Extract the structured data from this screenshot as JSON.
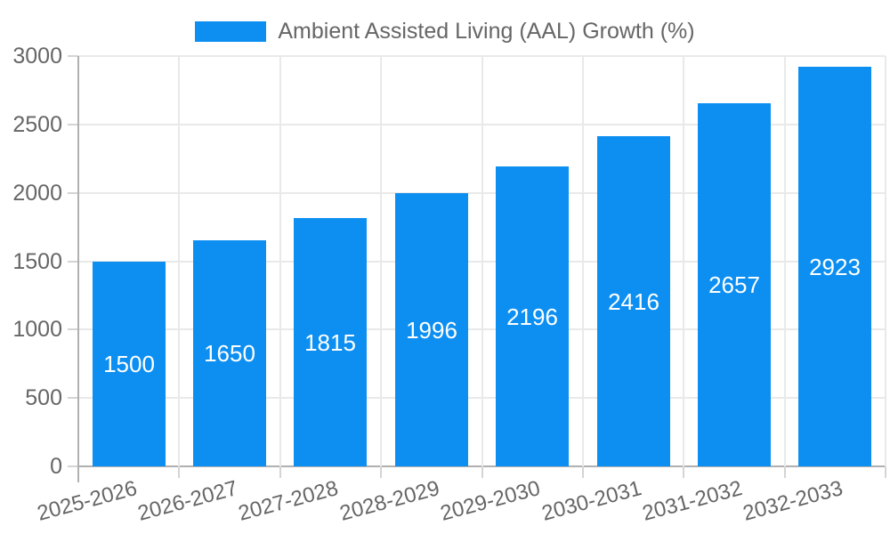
{
  "legend": {
    "label": "Ambient Assisted Living (AAL) Growth (%)"
  },
  "colors": {
    "bar": "#0d8ff2",
    "grid": "#e9e9e9",
    "axis": "#b0b0b0",
    "tick": "#d4d4d4",
    "text": "#666666",
    "value_label": "#ffffff",
    "background": "#ffffff"
  },
  "chart_data": {
    "type": "bar",
    "title": "",
    "series_name": "Ambient Assisted Living (AAL) Growth (%)",
    "categories": [
      "2025-2026",
      "2026-2027",
      "2027-2028",
      "2028-2029",
      "2029-2030",
      "2030-2031",
      "2031-2032",
      "2032-2033"
    ],
    "values": [
      1500,
      1650,
      1815,
      1996,
      2196,
      2416,
      2657,
      2923
    ],
    "xlabel": "",
    "ylabel": "",
    "ylim": [
      0,
      3000
    ],
    "yticks": [
      0,
      500,
      1000,
      1500,
      2000,
      2500,
      3000
    ],
    "grid": true,
    "legend_position": "top",
    "bar_value_labels": "centered-white"
  }
}
